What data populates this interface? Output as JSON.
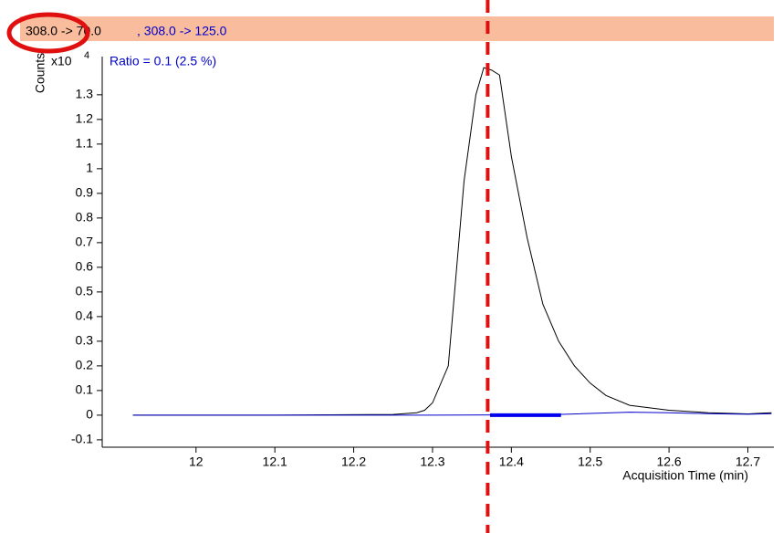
{
  "chart_data": {
    "type": "line",
    "header": {
      "transition": "308.0 -> 70.0",
      "qualifier": ", 308.0 -> 125.0"
    },
    "annotation": "Ratio = 0.1 (2.5 %)",
    "ylabel": "Counts",
    "yscale_label": "x10",
    "yscale_exponent": "4",
    "xlabel": "Acquisition Time (min)",
    "xlim": [
      11.881,
      12.733
    ],
    "ylim": [
      -0.13,
      1.455
    ],
    "xticks": [
      12,
      12.1,
      12.2,
      12.3,
      12.4,
      12.5,
      12.6,
      12.7
    ],
    "yticks": [
      -0.1,
      0,
      0.1,
      0.2,
      0.3,
      0.4,
      0.5,
      0.6,
      0.7,
      0.8,
      0.9,
      1,
      1.1,
      1.2,
      1.3
    ],
    "marker_time": 12.37,
    "integration_range": [
      12.373,
      12.463
    ],
    "series": [
      {
        "name": "308.0 -> 70.0",
        "color": "#000000",
        "x": [
          11.92,
          12.1,
          12.25,
          12.28,
          12.29,
          12.3,
          12.32,
          12.34,
          12.355,
          12.365,
          12.375,
          12.385,
          12.4,
          12.42,
          12.44,
          12.46,
          12.48,
          12.5,
          12.52,
          12.55,
          12.6,
          12.65,
          12.7,
          12.73
        ],
        "values": [
          0,
          0,
          0.003,
          0.01,
          0.02,
          0.05,
          0.2,
          0.95,
          1.3,
          1.41,
          1.4,
          1.38,
          1.05,
          0.72,
          0.45,
          0.3,
          0.2,
          0.13,
          0.08,
          0.04,
          0.02,
          0.01,
          0.005,
          0.01
        ]
      },
      {
        "name": "308.0 -> 125.0",
        "color": "#0000cc",
        "x": [
          11.92,
          12.3,
          12.45,
          12.55,
          12.6,
          12.65,
          12.7,
          12.73
        ],
        "values": [
          0,
          0,
          0.002,
          0.012,
          0.01,
          0.006,
          0.004,
          0.006
        ]
      }
    ]
  }
}
